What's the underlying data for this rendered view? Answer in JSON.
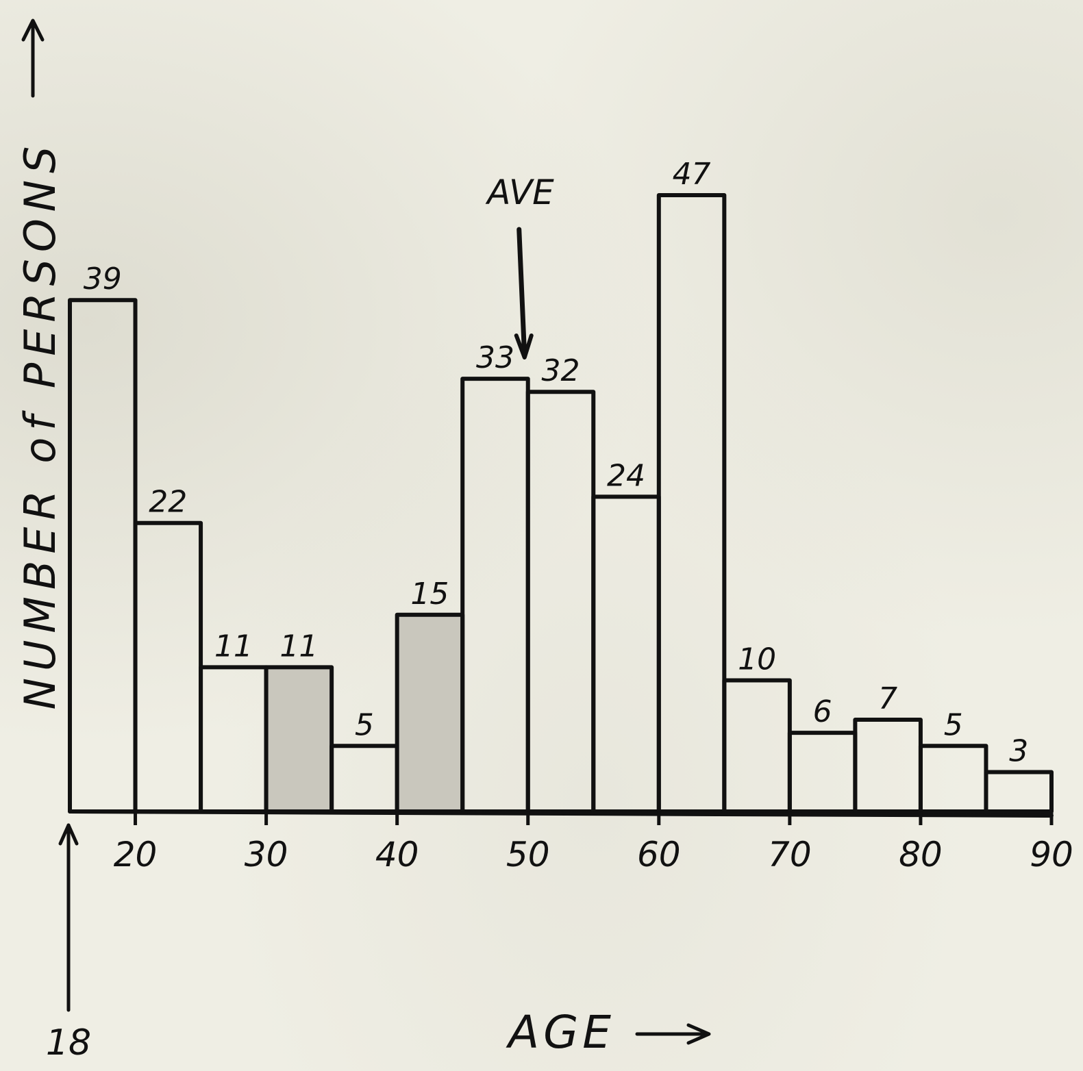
{
  "chart_data": {
    "type": "bar",
    "xlabel": "AGE",
    "ylabel": "NUMBER of PERSONS",
    "x_start_label": "18",
    "x": [
      15,
      20,
      25,
      30,
      35,
      40,
      45,
      50,
      55,
      60,
      65,
      70,
      75,
      80,
      85
    ],
    "values": [
      39,
      22,
      11,
      11,
      5,
      15,
      33,
      32,
      24,
      47,
      10,
      6,
      7,
      5,
      3
    ],
    "value_labels": [
      "39",
      "22",
      "11",
      "11",
      "5",
      "15",
      "33",
      "32",
      "24",
      "47",
      "10",
      "6",
      "7",
      "5",
      "3"
    ],
    "shaded": [
      false,
      false,
      false,
      true,
      false,
      true,
      false,
      false,
      false,
      false,
      false,
      false,
      false,
      false,
      false
    ],
    "xticks": [
      "20",
      "30",
      "40",
      "50",
      "60",
      "70",
      "80",
      "90"
    ],
    "xtick_values": [
      20,
      30,
      40,
      50,
      60,
      70,
      80,
      90
    ],
    "xlim": [
      15,
      90
    ],
    "ylim": [
      0,
      47
    ],
    "annotation": {
      "text": "AVE",
      "x": 50
    },
    "grid": false,
    "legend": "none",
    "colors": {
      "ink": "#111111",
      "paper": "#efeee4",
      "shade": "#c9c7bd"
    }
  }
}
